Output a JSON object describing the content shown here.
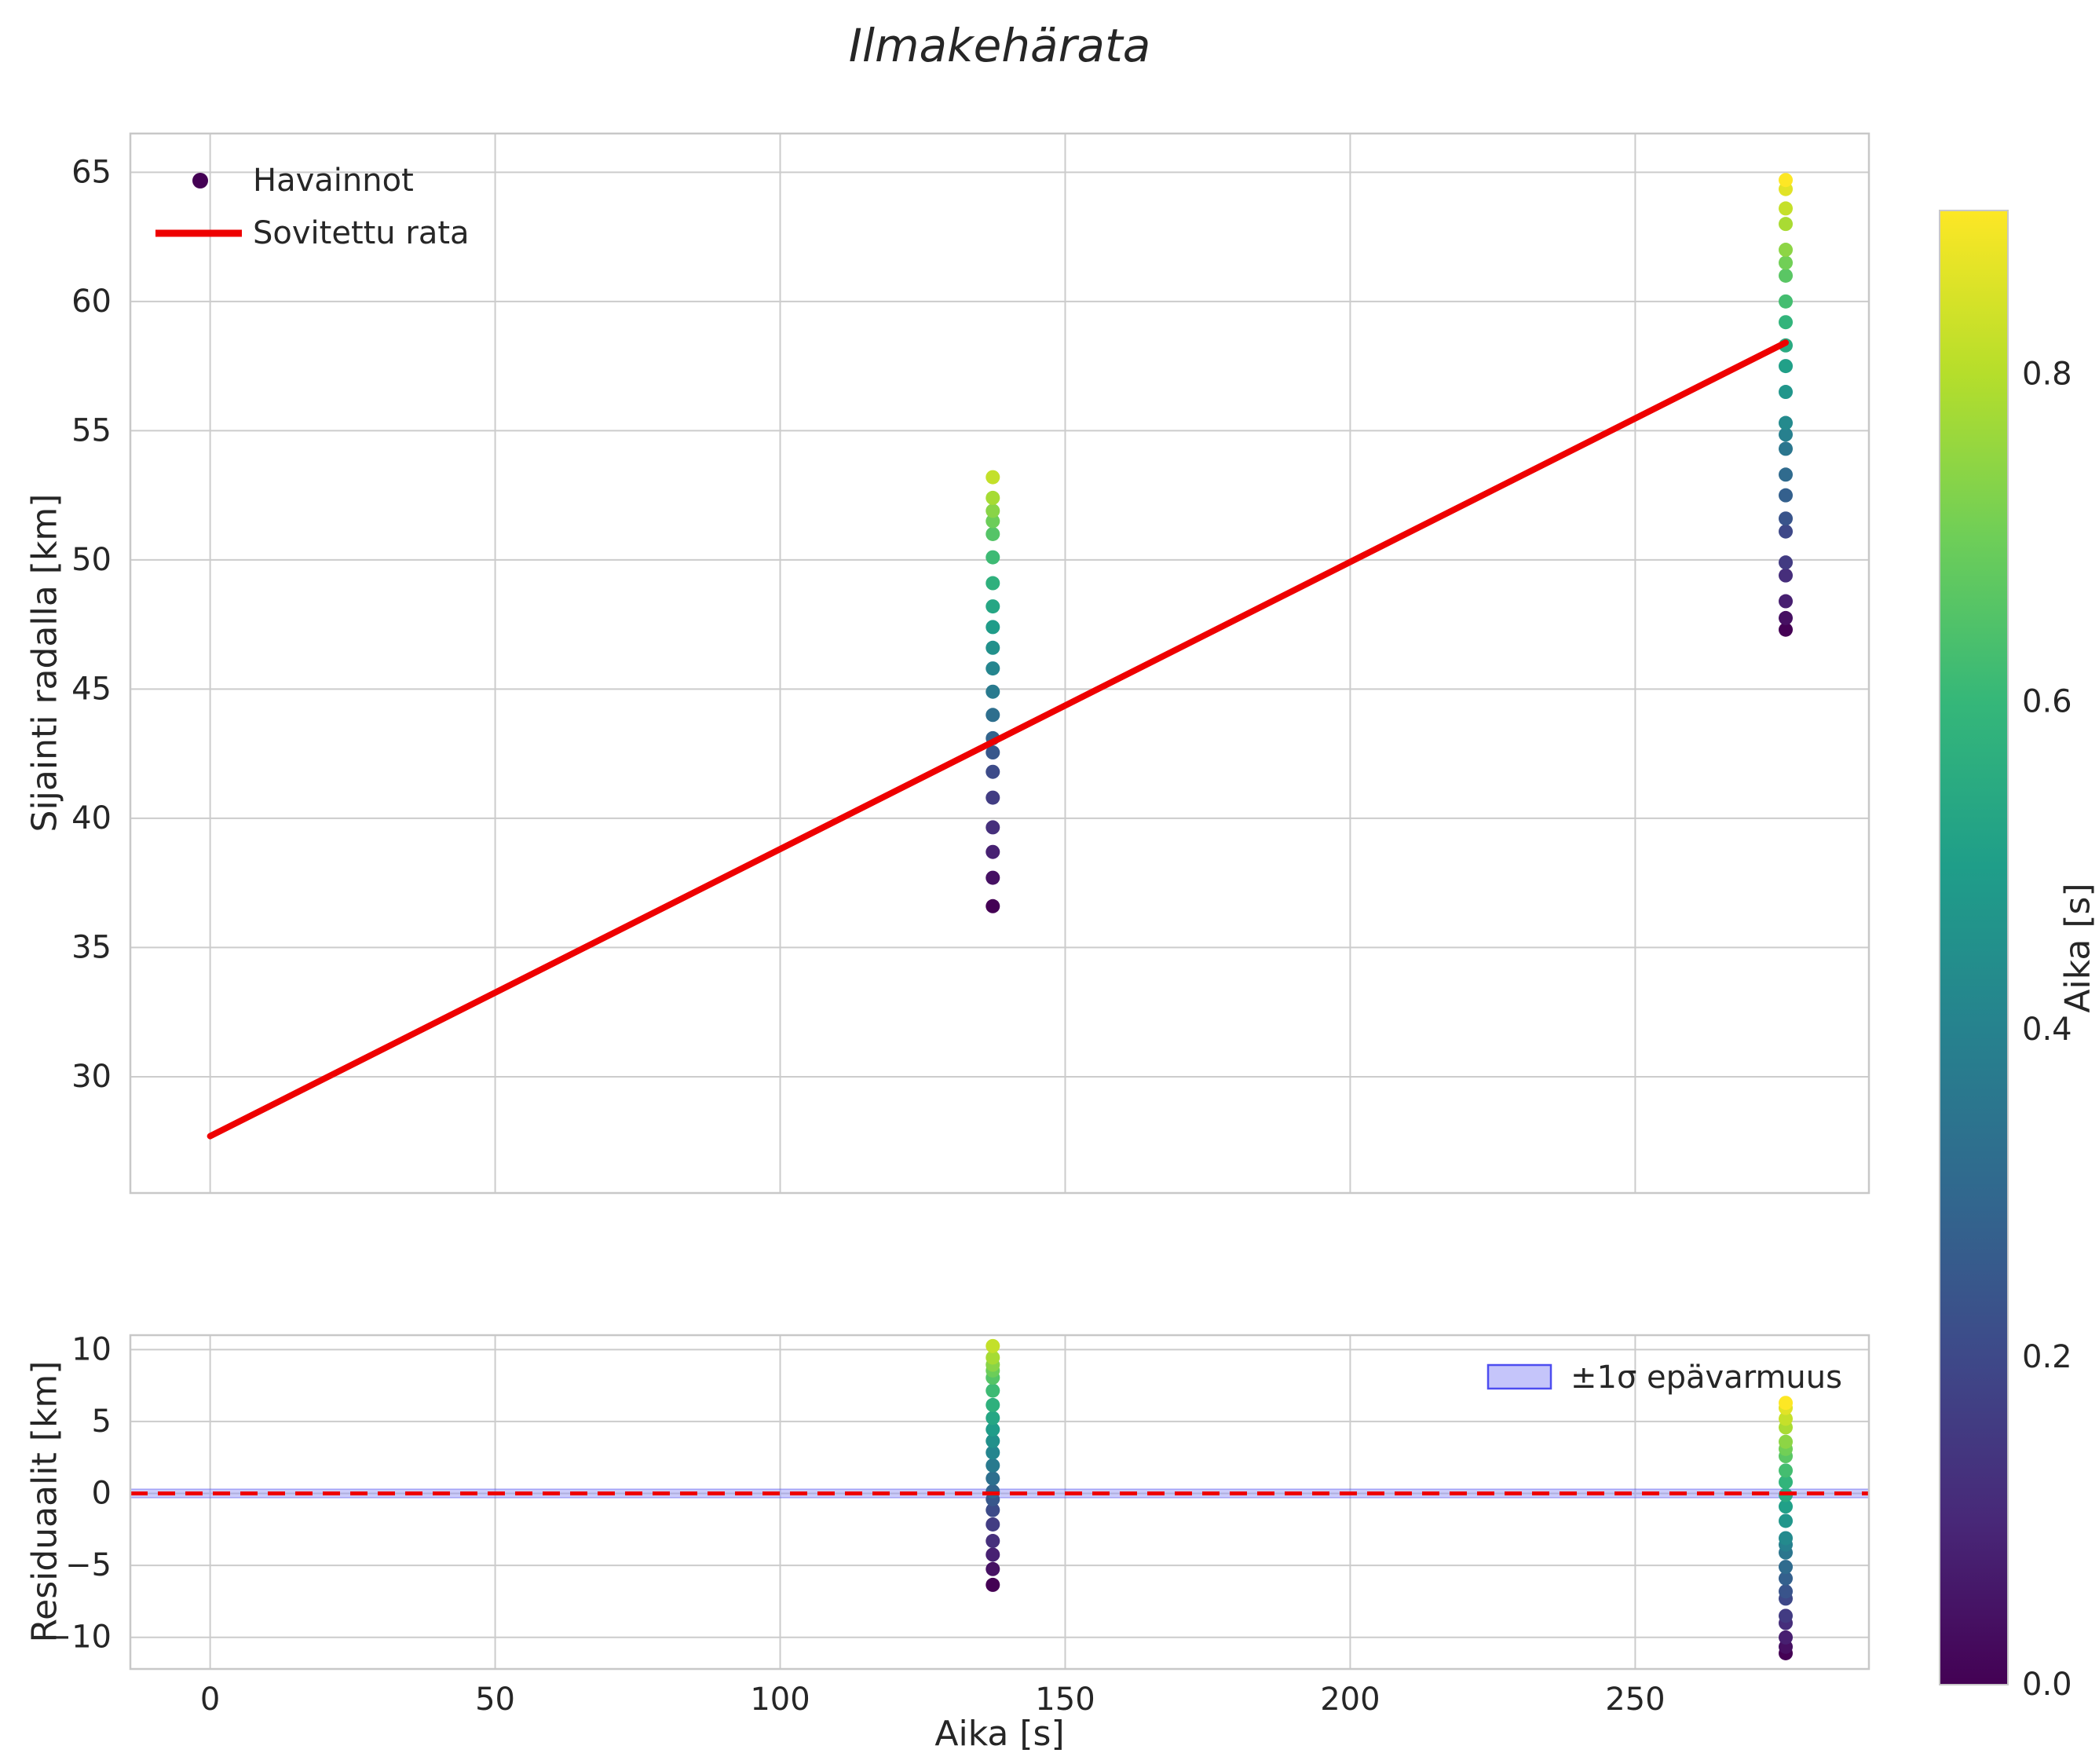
{
  "title": "Ilmakehärata",
  "colors": {
    "figure_bg": "#ffffff",
    "axes_bg": "#ffffff",
    "grid": "#cccccc",
    "spine": "#c8c8c8",
    "text": "#262626",
    "fit_line": "#ee0000",
    "band_fill": "#8c8cf5",
    "band_edge": "#4d4df0",
    "first_marker": "#440154",
    "viridis_stops": [
      "#440154",
      "#482878",
      "#3e4989",
      "#31688e",
      "#26828e",
      "#1f9e89",
      "#35b779",
      "#6ece58",
      "#b5de2b",
      "#fde725"
    ]
  },
  "chart_data": {
    "type": "scatter",
    "title": "Ilmakehärata",
    "xlabel": "Aika [s]",
    "xlim": [
      -14,
      291
    ],
    "xticks": [
      0,
      50,
      100,
      150,
      200,
      250
    ],
    "grid": true,
    "trajectory_panel": {
      "ylabel": "Sijainti radalla [km]",
      "ylim": [
        25.5,
        66.5
      ],
      "yticks": [
        30,
        35,
        40,
        45,
        50,
        55,
        60,
        65
      ],
      "legend": {
        "points_label": "Havainnot",
        "line_label": "Sovitettu rata"
      },
      "fit_line": {
        "intercept_km": 27.7,
        "slope_km_per_s": 0.1111,
        "t_start": 0,
        "t_end": 276.4
      },
      "clusters": [
        {
          "t": 137.3,
          "y": [
            36.6,
            37.7,
            38.7,
            39.65,
            40.8,
            41.8,
            42.55,
            43.1,
            44.0,
            44.9,
            45.8,
            46.6,
            47.4,
            48.2,
            49.1,
            50.1,
            51.0,
            51.5,
            51.9,
            52.4,
            53.2
          ],
          "c": [
            0.0,
            0.041,
            0.082,
            0.123,
            0.164,
            0.205,
            0.246,
            0.287,
            0.328,
            0.369,
            0.41,
            0.451,
            0.492,
            0.533,
            0.574,
            0.615,
            0.656,
            0.697,
            0.738,
            0.779,
            0.82
          ]
        },
        {
          "t": 276.4,
          "y": [
            47.3,
            47.75,
            48.4,
            49.4,
            49.9,
            51.1,
            51.6,
            52.5,
            53.3,
            54.3,
            54.85,
            55.3,
            56.5,
            57.5,
            58.3,
            59.2,
            60.0,
            61.0,
            61.5,
            62.0,
            63.0,
            63.6,
            64.35,
            64.7
          ],
          "c": [
            0.0,
            0.039,
            0.078,
            0.117,
            0.157,
            0.196,
            0.235,
            0.274,
            0.313,
            0.352,
            0.391,
            0.43,
            0.47,
            0.509,
            0.548,
            0.587,
            0.626,
            0.665,
            0.704,
            0.743,
            0.783,
            0.822,
            0.861,
            0.9
          ]
        }
      ]
    },
    "residual_panel": {
      "ylabel": "Residuaalit [km]",
      "ylim": [
        -12.2,
        11.0
      ],
      "yticks": [
        -10,
        -5,
        0,
        5,
        10
      ],
      "legend": {
        "band_label": "±1σ epävarmuus"
      },
      "zero_line": 0,
      "band_sigma_km": 0.3
    },
    "colorbar": {
      "label": "Aika [s]",
      "vmin": 0.0,
      "vmax": 0.9,
      "ticks": [
        0.0,
        0.2,
        0.4,
        0.6,
        0.8
      ]
    }
  }
}
